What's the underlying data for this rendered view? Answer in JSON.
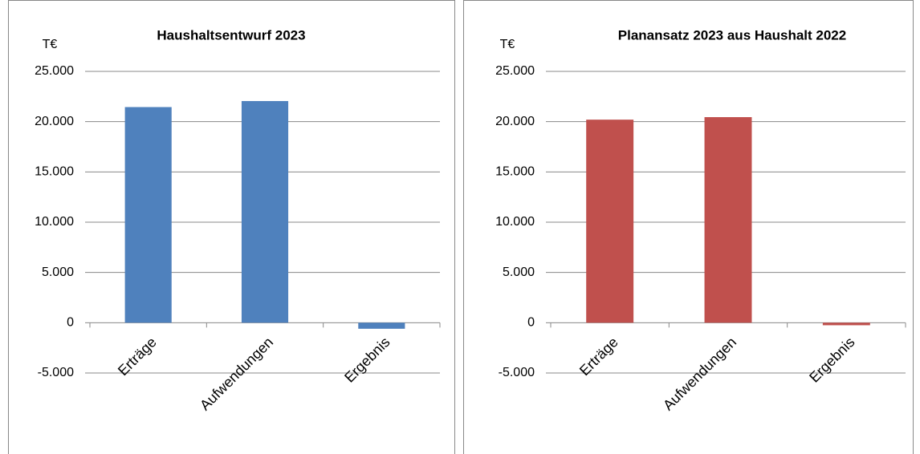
{
  "chart_data": [
    {
      "type": "bar",
      "title": "Haushaltsentwurf 2023",
      "y_label": "T€",
      "categories": [
        "Erträge",
        "Aufwendungen",
        "Ergebnis"
      ],
      "values": [
        21450,
        22050,
        -600
      ],
      "color": "#4f81bd",
      "ylim": [
        -5000,
        25000
      ],
      "yticks": [
        {
          "value": -5000,
          "label": "-5.000"
        },
        0,
        {
          "value": 5000,
          "label": "5.000"
        },
        {
          "value": 10000,
          "label": "10.000"
        },
        {
          "value": 15000,
          "label": "15.000"
        },
        {
          "value": 20000,
          "label": "20.000"
        },
        {
          "value": 25000,
          "label": "25.000"
        }
      ],
      "grid": true
    },
    {
      "type": "bar",
      "title": "Planansatz 2023 aus Haushalt 2022",
      "y_label": "T€",
      "categories": [
        "Erträge",
        "Aufwendungen",
        "Ergebnis"
      ],
      "values": [
        20200,
        20450,
        -250
      ],
      "color": "#c0504d",
      "ylim": [
        -5000,
        25000
      ],
      "yticks": [
        {
          "value": -5000,
          "label": "-5.000"
        },
        0,
        {
          "value": 5000,
          "label": "5.000"
        },
        {
          "value": 10000,
          "label": "10.000"
        },
        {
          "value": 15000,
          "label": "15.000"
        },
        {
          "value": 20000,
          "label": "20.000"
        },
        {
          "value": 25000,
          "label": "25.000"
        }
      ],
      "grid": true
    }
  ]
}
